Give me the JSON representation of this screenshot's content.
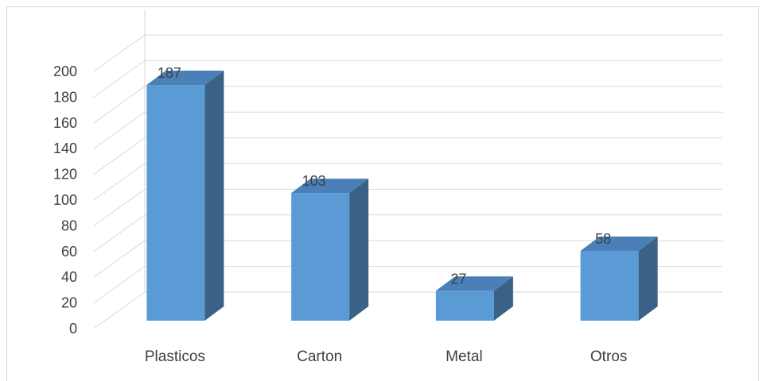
{
  "chart_data": {
    "type": "bar",
    "title": "",
    "xlabel": "",
    "ylabel": "",
    "categories": [
      "Plasticos",
      "Carton",
      "Metal",
      "Otros"
    ],
    "series": [
      {
        "values": [
          187,
          103,
          27,
          58
        ],
        "color": "#5B9BD5"
      }
    ],
    "data_labels": [
      "187",
      "103",
      "27",
      "58"
    ],
    "ylim": [
      0,
      200
    ],
    "yticks": [
      "0",
      "20",
      "40",
      "60",
      "80",
      "100",
      "120",
      "140",
      "160",
      "180",
      "200"
    ],
    "grid": true,
    "legend": "none",
    "style": "3d-column"
  }
}
